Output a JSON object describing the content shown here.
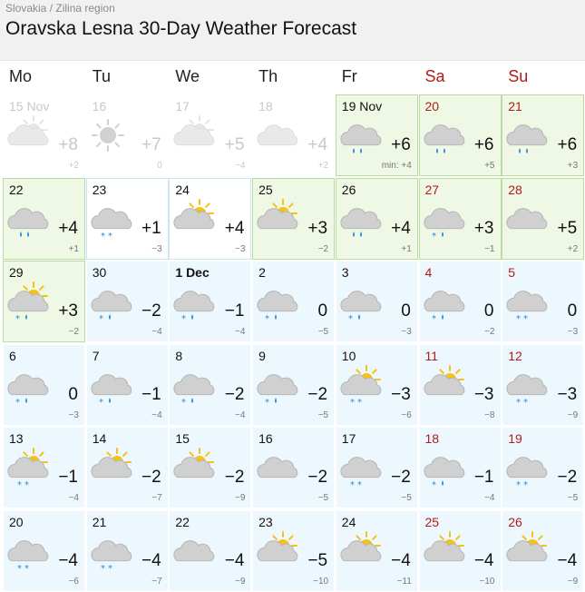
{
  "breadcrumb": {
    "country": "Slovakia",
    "sep": " / ",
    "region": "Zilina region"
  },
  "title": "Oravska Lesna 30-Day Weather Forecast",
  "weekdays": [
    {
      "label": "Mo",
      "weekend": false
    },
    {
      "label": "Tu",
      "weekend": false
    },
    {
      "label": "We",
      "weekend": false
    },
    {
      "label": "Th",
      "weekend": false
    },
    {
      "label": "Fr",
      "weekend": false
    },
    {
      "label": "Sa",
      "weekend": true
    },
    {
      "label": "Su",
      "weekend": true
    }
  ],
  "days": [
    {
      "date": "15 Nov",
      "temp": "+8",
      "min": "+2",
      "icon": "cloud-sun",
      "bg": "past"
    },
    {
      "date": "16",
      "temp": "+7",
      "min": "0",
      "icon": "sun",
      "bg": "past"
    },
    {
      "date": "17",
      "temp": "+5",
      "min": "−4",
      "icon": "cloud-sun",
      "bg": "past"
    },
    {
      "date": "18",
      "temp": "+4",
      "min": "+2",
      "icon": "cloud",
      "bg": "past"
    },
    {
      "date": "19 Nov",
      "temp": "+6",
      "min": "min: +4",
      "icon": "rain",
      "bg": "green"
    },
    {
      "date": "20",
      "temp": "+6",
      "min": "+5",
      "icon": "rain",
      "bg": "green",
      "weekend": true
    },
    {
      "date": "21",
      "temp": "+6",
      "min": "+3",
      "icon": "rain",
      "bg": "green",
      "weekend": true
    },
    {
      "date": "22",
      "temp": "+4",
      "min": "+1",
      "icon": "rain",
      "bg": "green"
    },
    {
      "date": "23",
      "temp": "+1",
      "min": "−3",
      "icon": "snow",
      "bg": "hl"
    },
    {
      "date": "24",
      "temp": "+4",
      "min": "−3",
      "icon": "sun-cloud",
      "bg": "hl"
    },
    {
      "date": "25",
      "temp": "+3",
      "min": "−2",
      "icon": "sun-cloud",
      "bg": "green"
    },
    {
      "date": "26",
      "temp": "+4",
      "min": "+1",
      "icon": "rain",
      "bg": "green"
    },
    {
      "date": "27",
      "temp": "+3",
      "min": "−1",
      "icon": "snow-rain",
      "bg": "green",
      "weekend": true
    },
    {
      "date": "28",
      "temp": "+5",
      "min": "+2",
      "icon": "cloud",
      "bg": "green",
      "weekend": true
    },
    {
      "date": "29",
      "temp": "+3",
      "min": "−2",
      "icon": "sun-snow-rain",
      "bg": "green"
    },
    {
      "date": "30",
      "temp": "−2",
      "min": "−4",
      "icon": "snow-rain",
      "bg": "blue"
    },
    {
      "date": "1 Dec",
      "temp": "−1",
      "min": "−4",
      "icon": "snow-rain",
      "bg": "blue",
      "bold": true
    },
    {
      "date": "2",
      "temp": "0",
      "min": "−5",
      "icon": "snow-rain",
      "bg": "blue"
    },
    {
      "date": "3",
      "temp": "0",
      "min": "−3",
      "icon": "snow-rain",
      "bg": "blue"
    },
    {
      "date": "4",
      "temp": "0",
      "min": "−2",
      "icon": "snow-rain",
      "bg": "blue",
      "weekend": true
    },
    {
      "date": "5",
      "temp": "0",
      "min": "−3",
      "icon": "snow",
      "bg": "blue",
      "weekend": true
    },
    {
      "date": "6",
      "temp": "0",
      "min": "−3",
      "icon": "snow-rain",
      "bg": "blue"
    },
    {
      "date": "7",
      "temp": "−1",
      "min": "−4",
      "icon": "snow-rain",
      "bg": "blue"
    },
    {
      "date": "8",
      "temp": "−2",
      "min": "−4",
      "icon": "snow-rain",
      "bg": "blue"
    },
    {
      "date": "9",
      "temp": "−2",
      "min": "−5",
      "icon": "snow-rain",
      "bg": "blue"
    },
    {
      "date": "10",
      "temp": "−3",
      "min": "−6",
      "icon": "sun-snow",
      "bg": "blue"
    },
    {
      "date": "11",
      "temp": "−3",
      "min": "−8",
      "icon": "sun-cloud",
      "bg": "blue",
      "weekend": true
    },
    {
      "date": "12",
      "temp": "−3",
      "min": "−9",
      "icon": "snow",
      "bg": "blue",
      "weekend": true
    },
    {
      "date": "13",
      "temp": "−1",
      "min": "−4",
      "icon": "sun-snow",
      "bg": "blue"
    },
    {
      "date": "14",
      "temp": "−2",
      "min": "−7",
      "icon": "sun-cloud",
      "bg": "blue"
    },
    {
      "date": "15",
      "temp": "−2",
      "min": "−9",
      "icon": "sun-cloud",
      "bg": "blue"
    },
    {
      "date": "16",
      "temp": "−2",
      "min": "−5",
      "icon": "cloud",
      "bg": "blue"
    },
    {
      "date": "17",
      "temp": "−2",
      "min": "−5",
      "icon": "snow",
      "bg": "blue"
    },
    {
      "date": "18",
      "temp": "−1",
      "min": "−4",
      "icon": "snow-rain",
      "bg": "blue",
      "weekend": true
    },
    {
      "date": "19",
      "temp": "−2",
      "min": "−5",
      "icon": "snow",
      "bg": "blue",
      "weekend": true
    },
    {
      "date": "20",
      "temp": "−4",
      "min": "−6",
      "icon": "snow",
      "bg": "blue"
    },
    {
      "date": "21",
      "temp": "−4",
      "min": "−7",
      "icon": "snow",
      "bg": "blue"
    },
    {
      "date": "22",
      "temp": "−4",
      "min": "−9",
      "icon": "cloud",
      "bg": "blue"
    },
    {
      "date": "23",
      "temp": "−5",
      "min": "−10",
      "icon": "sun-cloud",
      "bg": "blue"
    },
    {
      "date": "24",
      "temp": "−4",
      "min": "−11",
      "icon": "sun-cloud",
      "bg": "blue"
    },
    {
      "date": "25",
      "temp": "−4",
      "min": "−10",
      "icon": "sun-cloud",
      "bg": "blue",
      "weekend": true
    },
    {
      "date": "26",
      "temp": "−4",
      "min": "−9",
      "icon": "sun-cloud",
      "bg": "blue",
      "weekend": true
    }
  ],
  "colors": {
    "weekend": "#b01c1c",
    "sun": "#f5c21a",
    "cloud": "#c9c9c9",
    "rain": "#2a8ad6",
    "green_bg": "#eef8e4",
    "blue_bg": "#edf8fe"
  }
}
